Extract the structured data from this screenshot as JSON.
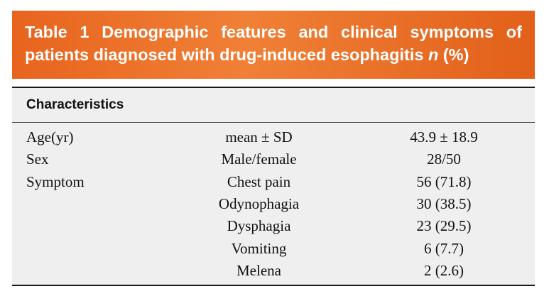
{
  "title": {
    "line1": "Table 1  Demographic features and clinical symptoms of",
    "line2_prefix": "patients diagnosed with drug-induced esophagitis",
    "line2_n": "n",
    "line2_suffix": "(%)"
  },
  "colors": {
    "banner": "#ee7a30",
    "table_background": "#efefef",
    "rule": "#1a1a1a"
  },
  "table": {
    "header": "Characteristics",
    "rows": [
      {
        "c1": "Age(yr)",
        "c2": "mean ± SD",
        "c3": "43.9 ± 18.9"
      },
      {
        "c1": "Sex",
        "c2": "Male/female",
        "c3": "28/50"
      },
      {
        "c1": "Symptom",
        "c2": "Chest pain",
        "c3": "56 (71.8)"
      },
      {
        "c1": "",
        "c2": "Odynophagia",
        "c3": "30 (38.5)"
      },
      {
        "c1": "",
        "c2": "Dysphagia",
        "c3": "23 (29.5)"
      },
      {
        "c1": "",
        "c2": "Vomiting",
        "c3": "6 (7.7)"
      },
      {
        "c1": "",
        "c2": "Melena",
        "c3": "2 (2.6)"
      }
    ]
  }
}
